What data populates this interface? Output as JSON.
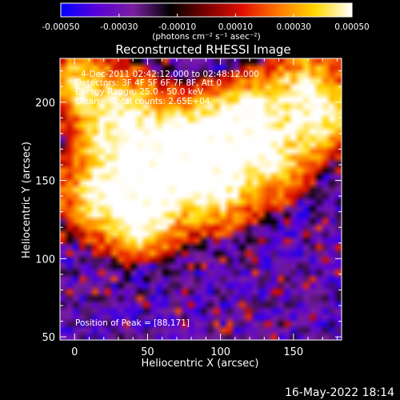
{
  "chart_data": {
    "type": "heatmap",
    "title": "Reconstructed RHESSI Image",
    "xlabel": "Heliocentric X (arcsec)",
    "ylabel": "Heliocentric Y (arcsec)",
    "xlim": [
      -10,
      183
    ],
    "ylim": [
      48,
      228
    ],
    "x_ticks": [
      0,
      50,
      100,
      150
    ],
    "y_ticks": [
      50,
      100,
      150,
      200
    ],
    "colorbar": {
      "min": -0.0005,
      "max": 0.0005,
      "tick_values": [
        -0.0005,
        -0.0003,
        -0.0001,
        0.0001,
        0.0003,
        0.0005
      ],
      "tick_labels": [
        "-0.00050",
        "-0.00030",
        "-0.00010",
        "0.00010",
        "0.00030",
        "0.00050"
      ],
      "unit_label": "(photons cm⁻² s⁻¹ asec⁻²)",
      "stops": [
        "#0000ff",
        "#5a00d8",
        "#7a1fa0",
        "#000000",
        "#7a0000",
        "#e01000",
        "#ff7a00",
        "#ffd800",
        "#ffffff"
      ]
    },
    "annotations": [
      "4-Dec-2011 02:42:12.000 to 02:48:12.000",
      "Detectors: 3F 4F 5F 6F 7F 8F, Att 0",
      "Energy Range: 25.0 - 50.0 keV",
      "Clean     Total counts: 2.65E+04"
    ],
    "peak_label": "Position of Peak = [88,171]",
    "peak": [
      88,
      171
    ],
    "emission_sources": [
      {
        "x": 88,
        "y": 171,
        "sigma": 22,
        "amp": 1.0
      },
      {
        "x": 30,
        "y": 190,
        "sigma": 22,
        "amp": 0.85
      },
      {
        "x": 120,
        "y": 190,
        "sigma": 18,
        "amp": 0.8
      },
      {
        "x": 160,
        "y": 210,
        "sigma": 18,
        "amp": 0.75
      },
      {
        "x": 55,
        "y": 150,
        "sigma": 22,
        "amp": 0.75
      },
      {
        "x": 15,
        "y": 140,
        "sigma": 18,
        "amp": 0.7
      },
      {
        "x": 45,
        "y": 120,
        "sigma": 16,
        "amp": 0.6
      },
      {
        "x": 140,
        "y": 160,
        "sigma": 18,
        "amp": 0.6
      },
      {
        "x": 100,
        "y": 140,
        "sigma": 18,
        "amp": 0.5
      },
      {
        "x": 170,
        "y": 185,
        "sigma": 14,
        "amp": 0.55
      },
      {
        "x": 0,
        "y": 215,
        "sigma": 14,
        "amp": 0.55
      }
    ]
  },
  "timestamp": "16-May-2022 18:14"
}
